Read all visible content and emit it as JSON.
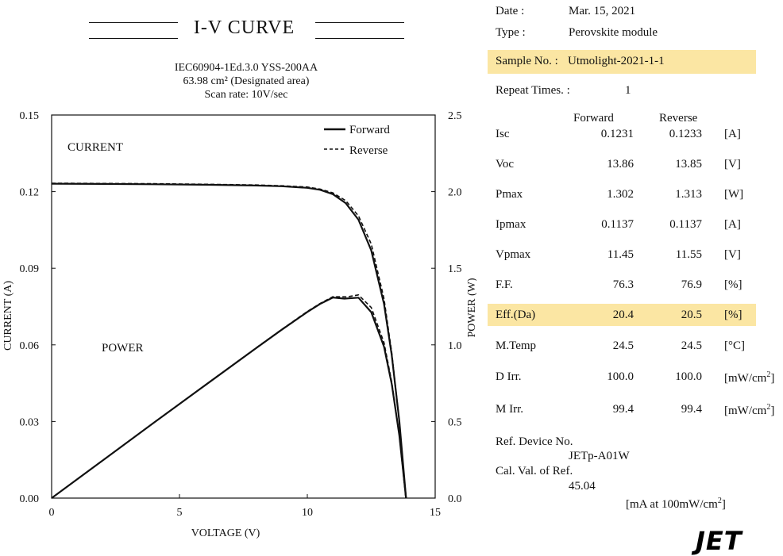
{
  "header": {
    "title": "I-V  CURVE",
    "standard": "IEC60904-1Ed.3.0 YSS-200AA",
    "area": "63.98 cm² (Designated area)",
    "scan_rate": "Scan rate: 10V/sec"
  },
  "info": {
    "date_label": "Date :",
    "date_value": "Mar. 15, 2021",
    "type_label": "Type :",
    "type_value": "Perovskite module",
    "sample_label": "Sample No. :",
    "sample_value": "Utmolight-2021-1-1",
    "repeat_label": "Repeat Times. :",
    "repeat_value": "1",
    "col_forward": "Forward",
    "col_reverse": "Reverse"
  },
  "params": [
    {
      "name": "Isc",
      "forward": "0.1231",
      "reverse": "0.1233",
      "unit": "[A]"
    },
    {
      "name": "Voc",
      "forward": "13.86",
      "reverse": "13.85",
      "unit": "[V]"
    },
    {
      "name": "Pmax",
      "forward": "1.302",
      "reverse": "1.313",
      "unit": "[W]"
    },
    {
      "name": "Ipmax",
      "forward": "0.1137",
      "reverse": "0.1137",
      "unit": "[A]"
    },
    {
      "name": "Vpmax",
      "forward": "11.45",
      "reverse": "11.55",
      "unit": "[V]"
    },
    {
      "name": "F.F.",
      "forward": "76.3",
      "reverse": "76.9",
      "unit": "[%]"
    },
    {
      "name": "Eff.(Da)",
      "forward": "20.4",
      "reverse": "20.5",
      "unit": "[%]"
    },
    {
      "name": "M.Temp",
      "forward": "24.5",
      "reverse": "24.5",
      "unit": "[°C]"
    },
    {
      "name": "D Irr.",
      "forward": "100.0",
      "reverse": "100.0",
      "unit": "[mW/cm"
    },
    {
      "name": "M Irr.",
      "forward": "99.4",
      "reverse": "99.4",
      "unit": "[mW/cm"
    }
  ],
  "footer": {
    "ref_device_label": "Ref. Device No.",
    "ref_device_value": "JETp-A01W",
    "cal_label": "Cal. Val. of Ref.",
    "cal_value": "45.04",
    "cal_unit": "[mA at 100mW/cm",
    "unit_sup": "2",
    "unit_close": "]",
    "logo": "JET"
  },
  "colors": {
    "highlight": "#fbe6a3",
    "ink": "#111111"
  },
  "chart_data": {
    "type": "line",
    "xlabel": "VOLTAGE (V)",
    "ylabel_left": "CURRENT (A)",
    "ylabel_right": "POWER (W)",
    "xlim": [
      0,
      15
    ],
    "ylim_left": [
      0,
      0.15
    ],
    "ylim_right": [
      0,
      2.5
    ],
    "x_ticks": [
      "0",
      "5",
      "10",
      "15"
    ],
    "y_left_ticks": [
      "0.00",
      "0.03",
      "0.06",
      "0.09",
      "0.12",
      "0.15"
    ],
    "y_right_ticks": [
      "0.0",
      "0.5",
      "1.0",
      "1.5",
      "2.0",
      "2.5"
    ],
    "annotations": [
      "CURRENT",
      "POWER"
    ],
    "legend_position": "top-right",
    "series": [
      {
        "name": "Forward",
        "quantity": "current",
        "axis": "left",
        "style": "solid",
        "x": [
          0,
          2,
          4,
          6,
          8,
          9,
          10,
          10.5,
          11,
          11.5,
          12,
          12.5,
          13,
          13.3,
          13.6,
          13.86
        ],
        "y": [
          0.1231,
          0.123,
          0.1229,
          0.1227,
          0.1224,
          0.1221,
          0.1215,
          0.1207,
          0.119,
          0.1155,
          0.109,
          0.097,
          0.076,
          0.056,
          0.03,
          0.0
        ]
      },
      {
        "name": "Reverse",
        "quantity": "current",
        "axis": "left",
        "style": "dashed",
        "x": [
          0,
          2,
          4,
          6,
          8,
          9,
          10,
          10.5,
          11,
          11.5,
          12,
          12.5,
          13,
          13.3,
          13.6,
          13.85
        ],
        "y": [
          0.1233,
          0.1232,
          0.1231,
          0.1229,
          0.1226,
          0.1223,
          0.1218,
          0.121,
          0.1195,
          0.1165,
          0.1105,
          0.0995,
          0.078,
          0.057,
          0.03,
          0.0
        ]
      },
      {
        "name": "Forward",
        "quantity": "power",
        "axis": "right",
        "style": "solid",
        "x": [
          0,
          2,
          4,
          6,
          8,
          9,
          10,
          10.5,
          11,
          11.45,
          12,
          12.5,
          13,
          13.3,
          13.6,
          13.86
        ],
        "y": [
          0.0,
          0.246,
          0.492,
          0.736,
          0.979,
          1.099,
          1.215,
          1.267,
          1.309,
          1.302,
          1.308,
          1.213,
          0.988,
          0.745,
          0.408,
          0.0
        ]
      },
      {
        "name": "Reverse",
        "quantity": "power",
        "axis": "right",
        "style": "dashed",
        "x": [
          0,
          2,
          4,
          6,
          8,
          9,
          10,
          10.5,
          11,
          11.55,
          12,
          12.5,
          13,
          13.3,
          13.6,
          13.85
        ],
        "y": [
          0.0,
          0.246,
          0.492,
          0.737,
          0.981,
          1.101,
          1.218,
          1.27,
          1.314,
          1.313,
          1.326,
          1.244,
          1.014,
          0.758,
          0.408,
          0.0
        ]
      }
    ]
  }
}
